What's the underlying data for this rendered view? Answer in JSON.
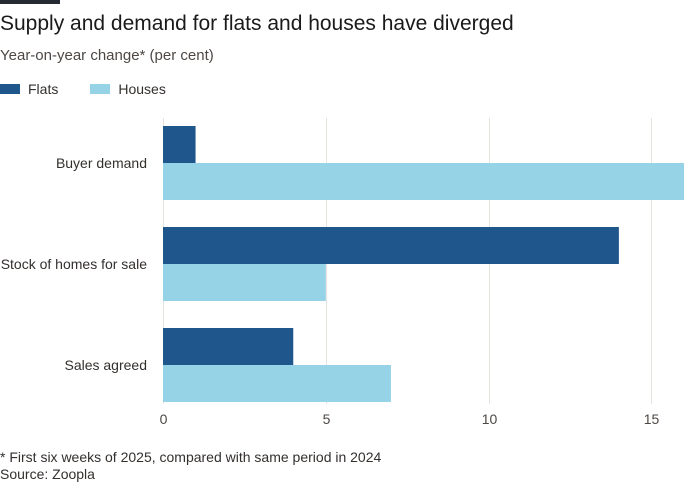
{
  "title": "Supply and demand for flats and houses have diverged",
  "subtitle": "Year-on-year change* (per cent)",
  "footnote": "* First six weeks of 2025, compared with same period in 2024",
  "source": "Source: Zoopla",
  "colors": {
    "flats": "#1f568c",
    "houses": "#96d3e6",
    "gridline": "#e6e2dd",
    "axis_text": "#4d4845"
  },
  "chart_data": {
    "type": "bar",
    "orientation": "horizontal",
    "categories": [
      "Buyer demand",
      "Stock of homes for sale",
      "Sales agreed"
    ],
    "series": [
      {
        "name": "Flats",
        "values": [
          1,
          14,
          4
        ]
      },
      {
        "name": "Houses",
        "values": [
          16,
          5,
          7
        ]
      }
    ],
    "xlim": [
      0,
      16
    ],
    "xticks": [
      0,
      5,
      10,
      15
    ],
    "grid": true,
    "legend": "top-left"
  }
}
